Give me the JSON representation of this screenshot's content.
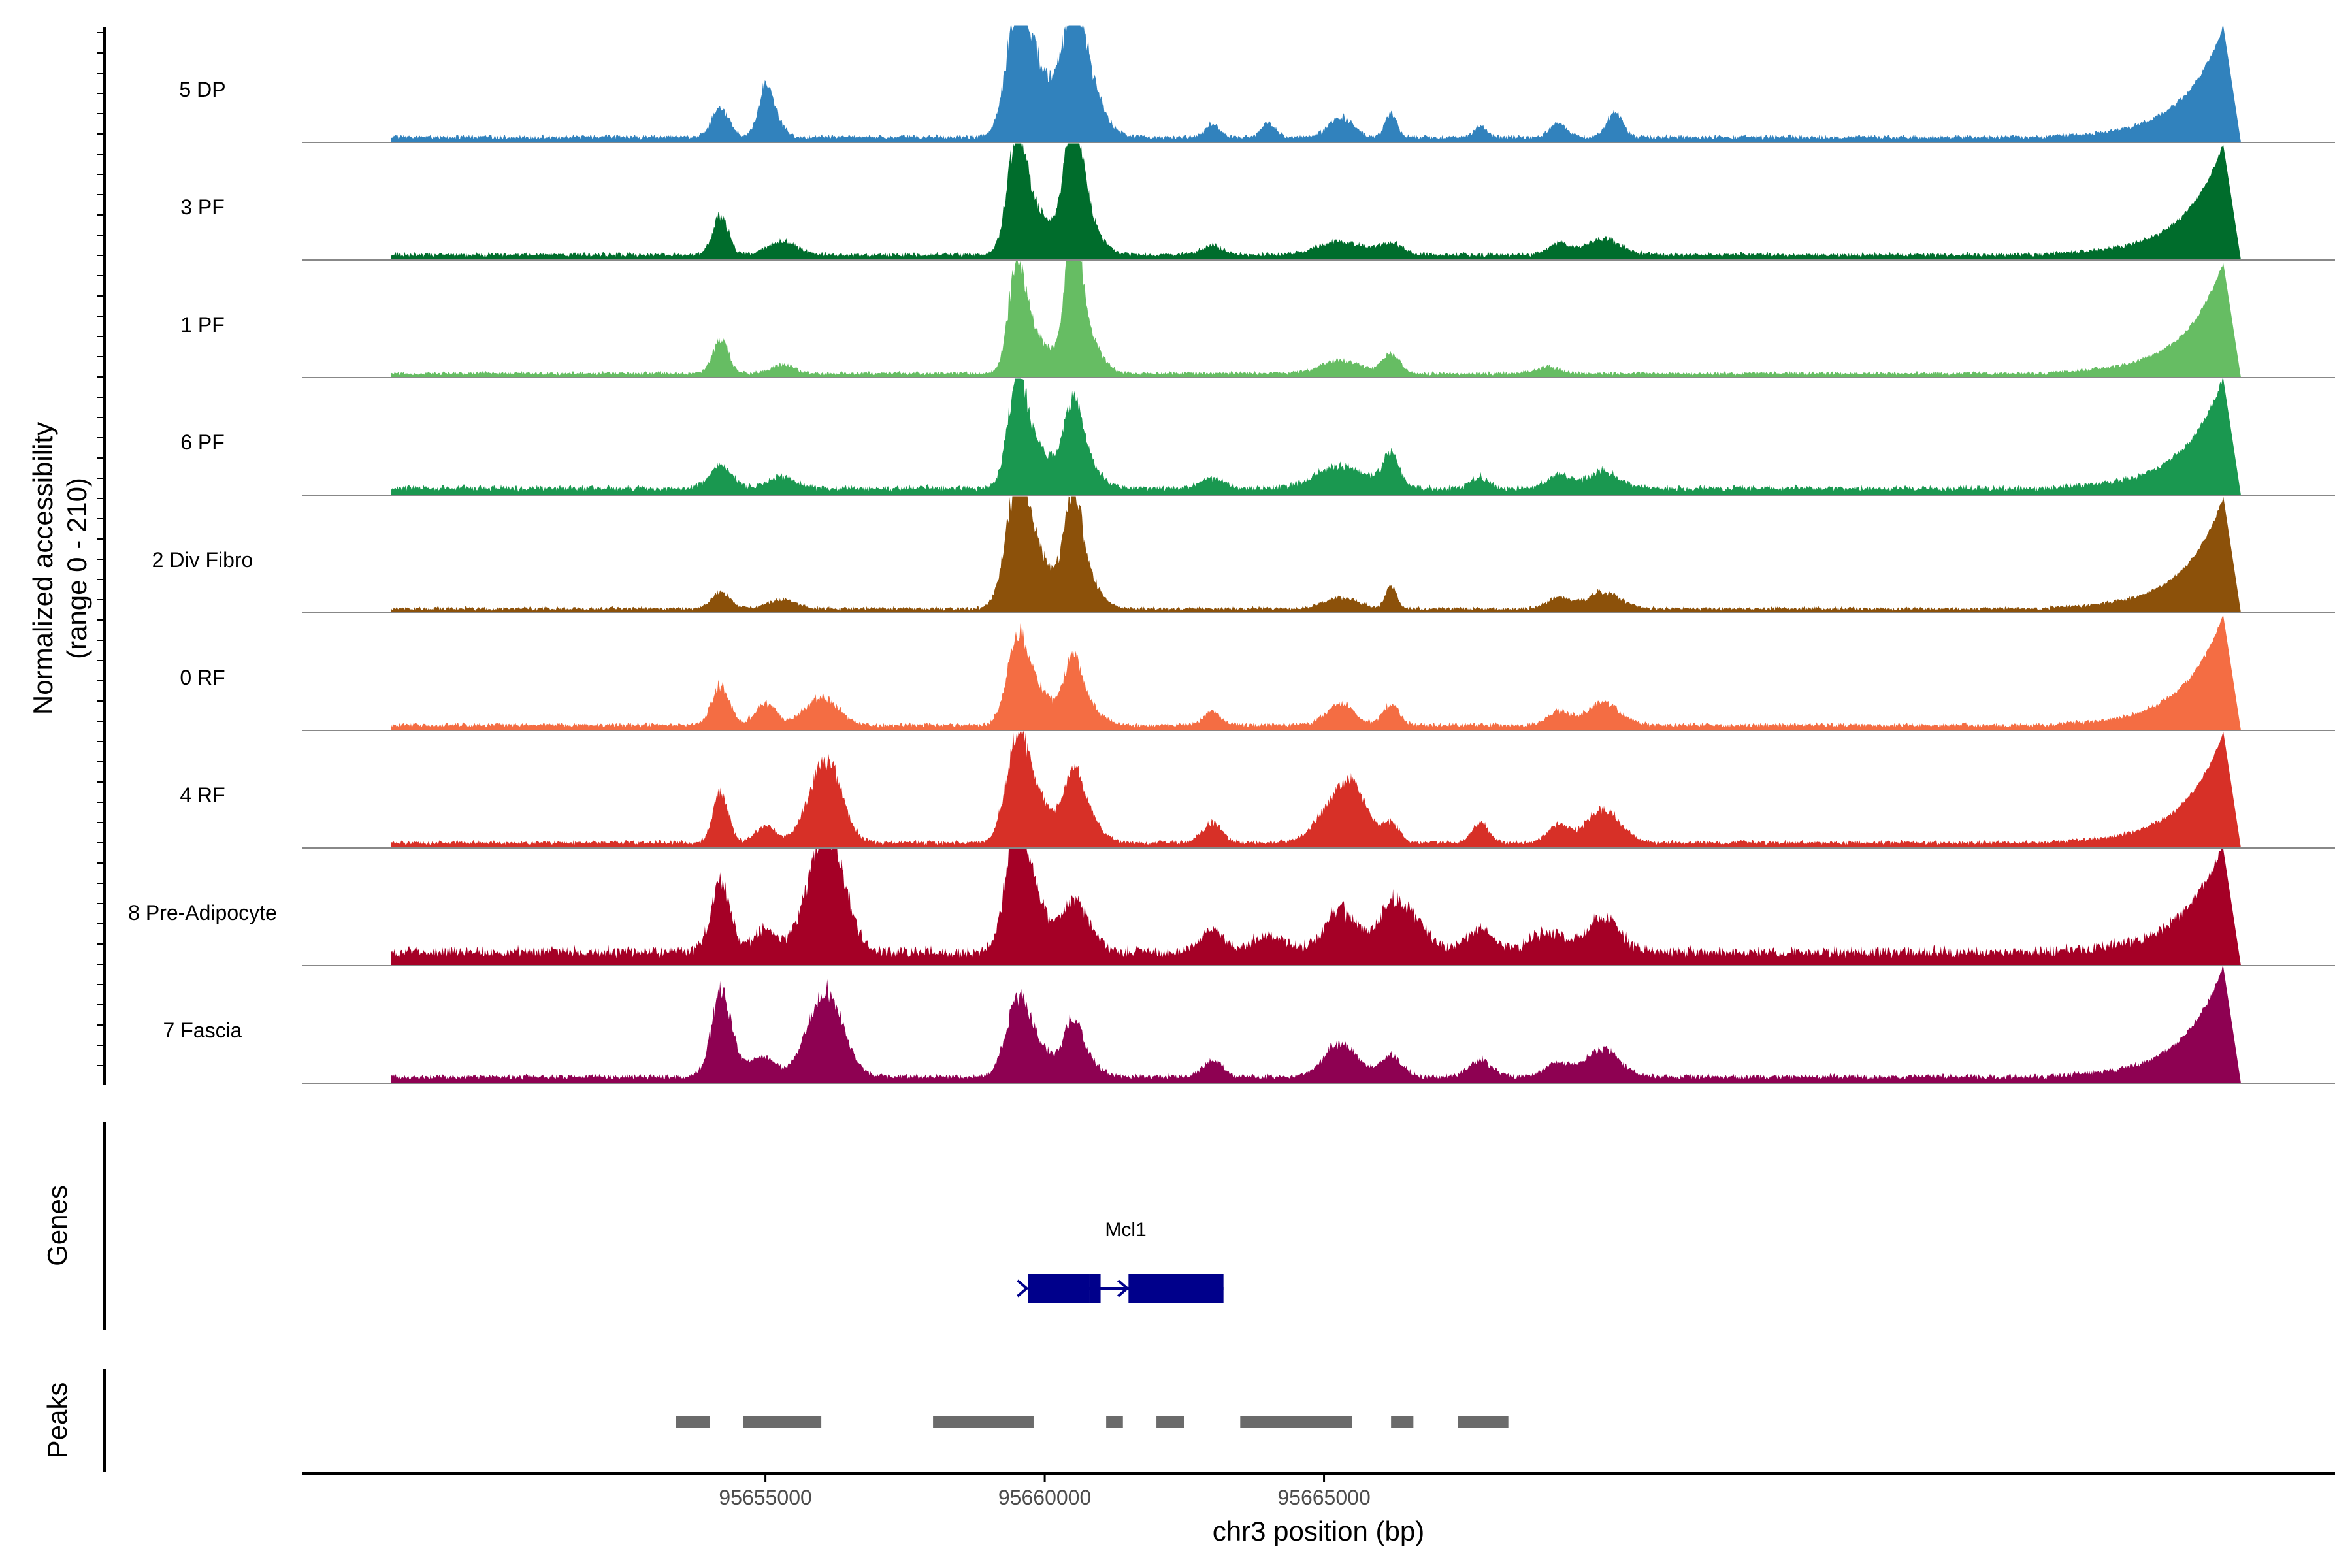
{
  "chart_data": {
    "type": "area",
    "y_axis_title": [
      "Normalized accessibility",
      "(range 0 - 210)"
    ],
    "ylim": [
      0,
      210
    ],
    "x_label": "chr3 position (bp)",
    "x_range": [
      95646700,
      95683100
    ],
    "x_ticks": [
      {
        "value": 95655000,
        "label": "95655000"
      },
      {
        "value": 95660000,
        "label": "95660000"
      },
      {
        "value": 95665000,
        "label": "95665000"
      }
    ],
    "tracks": [
      {
        "name": "5 DP",
        "color": "#3182bd",
        "baseline": 0.04,
        "noise": 0.02,
        "peaks": [
          [
            95654200,
            160,
            0.25
          ],
          [
            95655000,
            120,
            0.32
          ],
          [
            95655100,
            180,
            0.2
          ],
          [
            95659500,
            200,
            0.8
          ],
          [
            95659800,
            300,
            0.6
          ],
          [
            95660500,
            200,
            0.75
          ],
          [
            95660700,
            300,
            0.5
          ],
          [
            95663000,
            120,
            0.12
          ],
          [
            95664000,
            120,
            0.14
          ],
          [
            95665300,
            220,
            0.18
          ],
          [
            95666200,
            100,
            0.22
          ],
          [
            95667800,
            100,
            0.1
          ],
          [
            95669200,
            160,
            0.12
          ],
          [
            95670200,
            140,
            0.22
          ]
        ]
      },
      {
        "name": "3 PF",
        "color": "#006d2c",
        "baseline": 0.04,
        "noise": 0.02,
        "peaks": [
          [
            95654200,
            140,
            0.35
          ],
          [
            95655300,
            260,
            0.12
          ],
          [
            95659500,
            160,
            0.9
          ],
          [
            95659800,
            300,
            0.4
          ],
          [
            95660500,
            160,
            1.0
          ],
          [
            95660700,
            260,
            0.35
          ],
          [
            95663000,
            200,
            0.08
          ],
          [
            95665300,
            400,
            0.12
          ],
          [
            95666200,
            200,
            0.1
          ],
          [
            95669200,
            200,
            0.1
          ],
          [
            95670000,
            300,
            0.15
          ]
        ]
      },
      {
        "name": "1 PF",
        "color": "#66bd63",
        "baseline": 0.03,
        "noise": 0.02,
        "peaks": [
          [
            95654200,
            140,
            0.3
          ],
          [
            95655300,
            200,
            0.08
          ],
          [
            95659500,
            150,
            0.85
          ],
          [
            95659800,
            250,
            0.35
          ],
          [
            95660500,
            150,
            1.0
          ],
          [
            95660700,
            250,
            0.4
          ],
          [
            95665300,
            350,
            0.12
          ],
          [
            95666200,
            150,
            0.18
          ],
          [
            95669000,
            200,
            0.06
          ]
        ]
      },
      {
        "name": "6 PF",
        "color": "#1a9850",
        "baseline": 0.05,
        "noise": 0.03,
        "peaks": [
          [
            95654200,
            200,
            0.2
          ],
          [
            95655300,
            250,
            0.1
          ],
          [
            95659500,
            160,
            0.8
          ],
          [
            95659800,
            300,
            0.4
          ],
          [
            95660500,
            160,
            0.6
          ],
          [
            95660700,
            260,
            0.25
          ],
          [
            95663000,
            200,
            0.1
          ],
          [
            95665300,
            450,
            0.2
          ],
          [
            95666200,
            150,
            0.3
          ],
          [
            95667800,
            150,
            0.1
          ],
          [
            95669200,
            200,
            0.12
          ],
          [
            95670000,
            300,
            0.15
          ]
        ]
      },
      {
        "name": "2 Div Fibro",
        "color": "#8c510a",
        "baseline": 0.03,
        "noise": 0.02,
        "peaks": [
          [
            95654200,
            160,
            0.15
          ],
          [
            95655300,
            260,
            0.08
          ],
          [
            95659500,
            200,
            0.9
          ],
          [
            95659800,
            300,
            0.5
          ],
          [
            95660500,
            160,
            0.8
          ],
          [
            95660700,
            260,
            0.3
          ],
          [
            95665300,
            300,
            0.1
          ],
          [
            95666200,
            100,
            0.2
          ],
          [
            95669200,
            200,
            0.1
          ],
          [
            95670000,
            300,
            0.15
          ]
        ]
      },
      {
        "name": "0 RF",
        "color": "#f46d43",
        "baseline": 0.04,
        "noise": 0.02,
        "peaks": [
          [
            95654200,
            160,
            0.35
          ],
          [
            95655000,
            180,
            0.2
          ],
          [
            95656000,
            300,
            0.25
          ],
          [
            95659500,
            180,
            0.6
          ],
          [
            95659800,
            300,
            0.35
          ],
          [
            95660500,
            160,
            0.45
          ],
          [
            95660700,
            260,
            0.2
          ],
          [
            95663000,
            150,
            0.12
          ],
          [
            95665300,
            250,
            0.2
          ],
          [
            95666200,
            150,
            0.18
          ],
          [
            95669200,
            200,
            0.12
          ],
          [
            95670000,
            300,
            0.2
          ]
        ]
      },
      {
        "name": "4 RF",
        "color": "#d73027",
        "baseline": 0.04,
        "noise": 0.02,
        "peaks": [
          [
            95654200,
            140,
            0.45
          ],
          [
            95655000,
            180,
            0.15
          ],
          [
            95656000,
            280,
            0.5
          ],
          [
            95656200,
            250,
            0.3
          ],
          [
            95659500,
            200,
            0.75
          ],
          [
            95659800,
            300,
            0.4
          ],
          [
            95660500,
            180,
            0.45
          ],
          [
            95660700,
            260,
            0.25
          ],
          [
            95663000,
            180,
            0.18
          ],
          [
            95665300,
            350,
            0.45
          ],
          [
            95665600,
            200,
            0.2
          ],
          [
            95666200,
            150,
            0.18
          ],
          [
            95667800,
            150,
            0.18
          ],
          [
            95669200,
            200,
            0.15
          ],
          [
            95670000,
            300,
            0.3
          ]
        ]
      },
      {
        "name": "8 Pre-Adipocyte",
        "color": "#a50026",
        "baseline": 0.1,
        "noise": 0.05,
        "peaks": [
          [
            95654200,
            180,
            0.6
          ],
          [
            95655000,
            220,
            0.2
          ],
          [
            95656000,
            300,
            0.65
          ],
          [
            95656200,
            300,
            0.5
          ],
          [
            95659500,
            200,
            0.95
          ],
          [
            95659800,
            300,
            0.4
          ],
          [
            95660500,
            200,
            0.3
          ],
          [
            95660700,
            250,
            0.2
          ],
          [
            95663000,
            200,
            0.2
          ],
          [
            95664000,
            300,
            0.15
          ],
          [
            95665300,
            300,
            0.38
          ],
          [
            95666200,
            250,
            0.35
          ],
          [
            95666600,
            300,
            0.25
          ],
          [
            95667800,
            250,
            0.22
          ],
          [
            95669000,
            300,
            0.18
          ],
          [
            95670000,
            300,
            0.3
          ]
        ]
      },
      {
        "name": "7 Fascia",
        "color": "#8e0152",
        "baseline": 0.05,
        "noise": 0.02,
        "peaks": [
          [
            95654200,
            160,
            0.65
          ],
          [
            95654400,
            300,
            0.15
          ],
          [
            95655000,
            200,
            0.15
          ],
          [
            95656000,
            300,
            0.5
          ],
          [
            95656200,
            300,
            0.3
          ],
          [
            95659500,
            200,
            0.55
          ],
          [
            95659800,
            300,
            0.3
          ],
          [
            95660500,
            160,
            0.4
          ],
          [
            95660700,
            260,
            0.15
          ],
          [
            95663000,
            180,
            0.15
          ],
          [
            95665300,
            300,
            0.3
          ],
          [
            95666200,
            200,
            0.18
          ],
          [
            95667800,
            200,
            0.15
          ],
          [
            95669200,
            250,
            0.12
          ],
          [
            95670000,
            300,
            0.25
          ]
        ]
      }
    ],
    "genes_label": "Genes",
    "gene": {
      "name": "Mcl1",
      "strand": "+",
      "color": "#00008b",
      "start": 95659700,
      "end": 95663200,
      "exons": [
        [
          95659700,
          95660800
        ],
        [
          95660800,
          95661000
        ],
        [
          95661500,
          95663200
        ]
      ]
    },
    "peaks_label": "Peaks",
    "peak_color": "#6b6b6b",
    "peak_regions": [
      [
        95653400,
        95654000
      ],
      [
        95654600,
        95656000
      ],
      [
        95658000,
        95659800
      ],
      [
        95661100,
        95661400
      ],
      [
        95662000,
        95662500
      ],
      [
        95663500,
        95665500
      ],
      [
        95666200,
        95666600
      ],
      [
        95667400,
        95668300
      ]
    ]
  }
}
